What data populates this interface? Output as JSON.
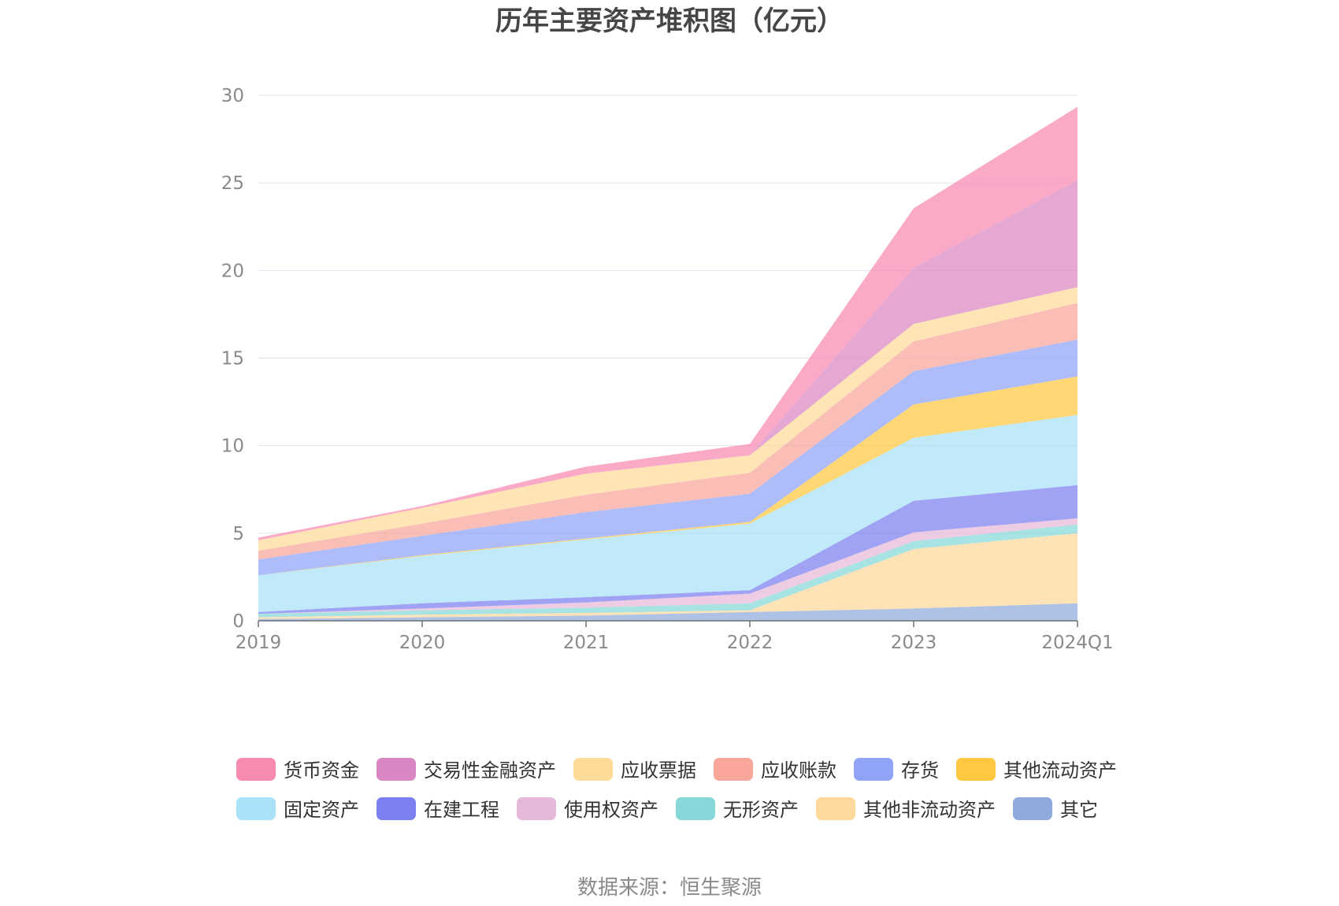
{
  "chart_data": {
    "type": "area",
    "stacked": true,
    "title": "历年主要资产堆积图（亿元）",
    "categories": [
      "2019",
      "2020",
      "2021",
      "2022",
      "2023",
      "2024Q1"
    ],
    "y_ticks": [
      "0",
      "5",
      "10",
      "15",
      "20",
      "25",
      "30"
    ],
    "ylim": [
      0,
      30
    ],
    "grid": true,
    "legend_position": "bottom",
    "series": [
      {
        "name": "其它",
        "color": "#8eaadb",
        "values": [
          0.1,
          0.2,
          0.3,
          0.5,
          0.7,
          1.0
        ]
      },
      {
        "name": "其他非流动资产",
        "color": "#ffd89b",
        "values": [
          0.1,
          0.15,
          0.15,
          0.1,
          3.4,
          4.0
        ]
      },
      {
        "name": "无形资产",
        "color": "#86d8d8",
        "values": [
          0.2,
          0.25,
          0.3,
          0.4,
          0.45,
          0.5
        ]
      },
      {
        "name": "使用权资产",
        "color": "#e6b8d9",
        "values": [
          0.0,
          0.1,
          0.3,
          0.55,
          0.5,
          0.35
        ]
      },
      {
        "name": "在建工程",
        "color": "#7b7ff0",
        "values": [
          0.1,
          0.3,
          0.3,
          0.2,
          1.8,
          1.9
        ]
      },
      {
        "name": "固定资产",
        "color": "#a8e1f8",
        "values": [
          2.1,
          2.7,
          3.3,
          3.8,
          3.6,
          4.0
        ]
      },
      {
        "name": "其他流动资产",
        "color": "#ffc840",
        "values": [
          0.0,
          0.05,
          0.05,
          0.1,
          1.9,
          2.2
        ]
      },
      {
        "name": "存货",
        "color": "#8fa4f7",
        "values": [
          0.9,
          1.1,
          1.5,
          1.6,
          1.9,
          2.1
        ]
      },
      {
        "name": "应收账款",
        "color": "#f8a59a",
        "values": [
          0.5,
          0.7,
          1.0,
          1.2,
          1.7,
          2.1
        ]
      },
      {
        "name": "应收票据",
        "color": "#ffdb98",
        "values": [
          0.6,
          0.9,
          1.2,
          1.0,
          1.0,
          0.9
        ]
      },
      {
        "name": "交易性金融资产",
        "color": "#d987c2",
        "values": [
          0.0,
          0.0,
          0.0,
          0.0,
          3.2,
          6.1
        ]
      },
      {
        "name": "货币资金",
        "color": "#f889b1",
        "values": [
          0.15,
          0.1,
          0.4,
          0.65,
          3.4,
          4.2
        ]
      }
    ],
    "legend_order": [
      "货币资金",
      "交易性金融资产",
      "应收票据",
      "应收账款",
      "存货",
      "其他流动资产",
      "固定资产",
      "在建工程",
      "使用权资产",
      "无形资产",
      "其他非流动资产",
      "其它"
    ]
  },
  "source_text": "数据来源：恒生聚源"
}
